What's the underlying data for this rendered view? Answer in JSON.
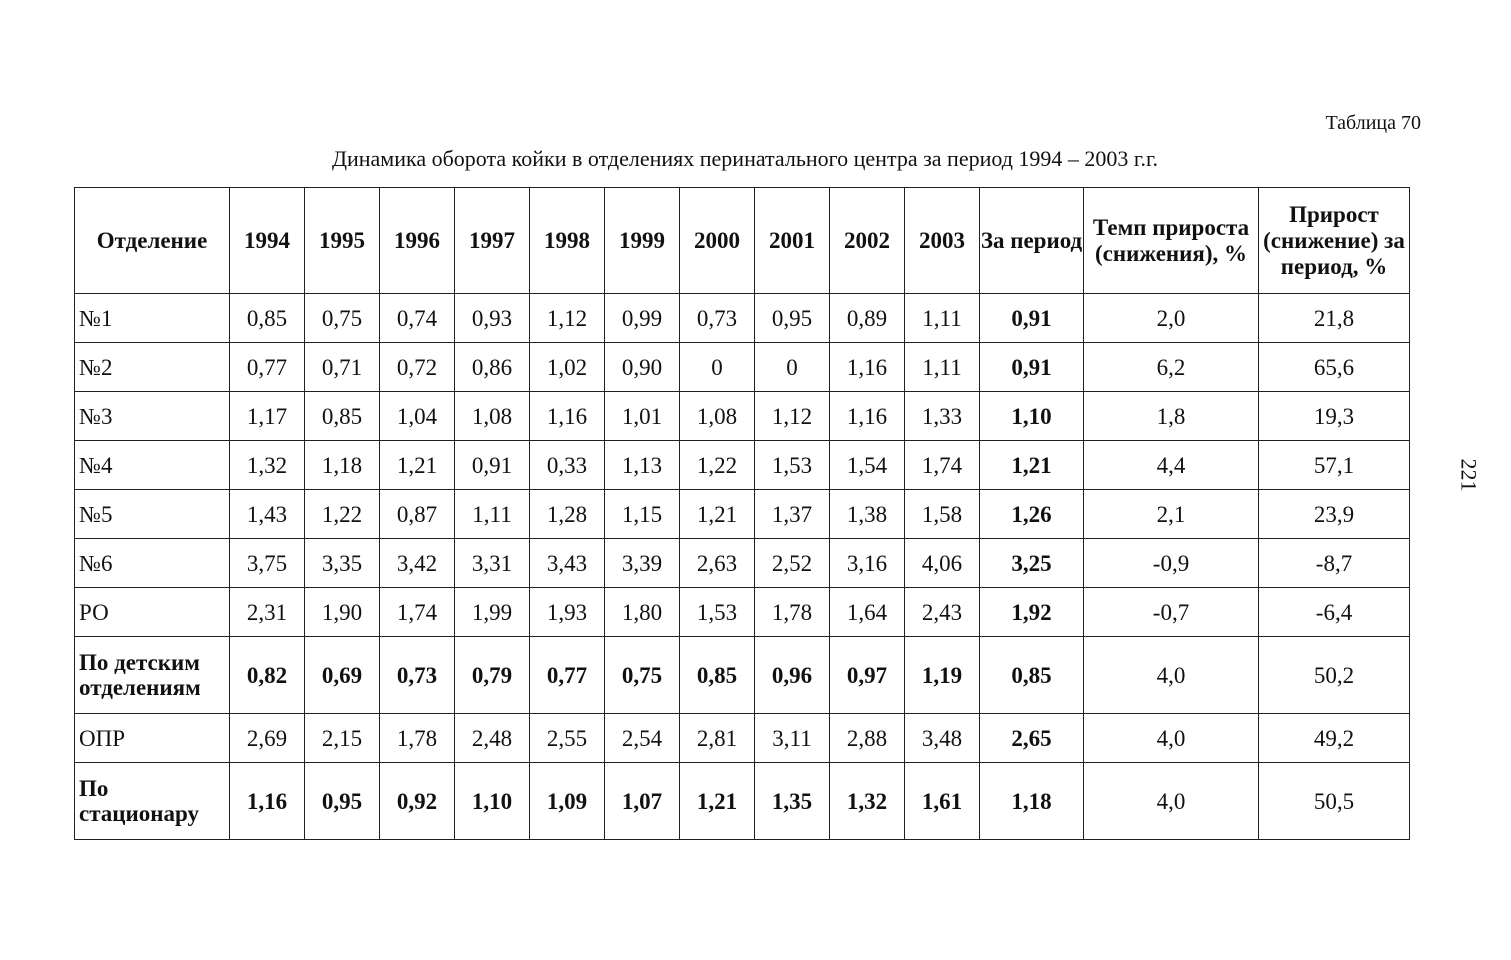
{
  "header": {
    "table_number": "Таблица 70",
    "caption": "Динамика оборота койки в отделениях перинатального центра за период 1994 – 2003 г.г.",
    "page_number": "221"
  },
  "table": {
    "columns": [
      "Отделение",
      "1994",
      "1995",
      "1996",
      "1997",
      "1998",
      "1999",
      "2000",
      "2001",
      "2002",
      "2003",
      "За период",
      "Темп прироста (снижения), %",
      "Прирост (снижение) за период, %"
    ],
    "rows": [
      {
        "label": "№1",
        "values": [
          "0,85",
          "0,75",
          "0,74",
          "0,93",
          "1,12",
          "0,99",
          "0,73",
          "0,95",
          "0,89",
          "1,11"
        ],
        "period": "0,91",
        "rate": "2,0",
        "growth": "21,8"
      },
      {
        "label": "№2",
        "values": [
          "0,77",
          "0,71",
          "0,72",
          "0,86",
          "1,02",
          "0,90",
          "0",
          "0",
          "1,16",
          "1,11"
        ],
        "period": "0,91",
        "rate": "6,2",
        "growth": "65,6"
      },
      {
        "label": "№3",
        "values": [
          "1,17",
          "0,85",
          "1,04",
          "1,08",
          "1,16",
          "1,01",
          "1,08",
          "1,12",
          "1,16",
          "1,33"
        ],
        "period": "1,10",
        "rate": "1,8",
        "growth": "19,3"
      },
      {
        "label": "№4",
        "values": [
          "1,32",
          "1,18",
          "1,21",
          "0,91",
          "0,33",
          "1,13",
          "1,22",
          "1,53",
          "1,54",
          "1,74"
        ],
        "period": "1,21",
        "rate": "4,4",
        "growth": "57,1"
      },
      {
        "label": "№5",
        "values": [
          "1,43",
          "1,22",
          "0,87",
          "1,11",
          "1,28",
          "1,15",
          "1,21",
          "1,37",
          "1,38",
          "1,58"
        ],
        "period": "1,26",
        "rate": "2,1",
        "growth": "23,9"
      },
      {
        "label": "№6",
        "values": [
          "3,75",
          "3,35",
          "3,42",
          "3,31",
          "3,43",
          "3,39",
          "2,63",
          "2,52",
          "3,16",
          "4,06"
        ],
        "period": "3,25",
        "rate": "-0,9",
        "growth": "-8,7"
      },
      {
        "label": "РО",
        "values": [
          "2,31",
          "1,90",
          "1,74",
          "1,99",
          "1,93",
          "1,80",
          "1,53",
          "1,78",
          "1,64",
          "2,43"
        ],
        "period": "1,92",
        "rate": "-0,7",
        "growth": "-6,4"
      },
      {
        "label": "По детским отделениям",
        "values": [
          "0,82",
          "0,69",
          "0,73",
          "0,79",
          "0,77",
          "0,75",
          "0,85",
          "0,96",
          "0,97",
          "1,19"
        ],
        "period": "0,85",
        "rate": "4,0",
        "growth": "50,2"
      },
      {
        "label": "ОПР",
        "values": [
          "2,69",
          "2,15",
          "1,78",
          "2,48",
          "2,55",
          "2,54",
          "2,81",
          "3,11",
          "2,88",
          "3,48"
        ],
        "period": "2,65",
        "rate": "4,0",
        "growth": "49,2"
      },
      {
        "label": "По стационару",
        "values": [
          "1,16",
          "0,95",
          "0,92",
          "1,10",
          "1,09",
          "1,07",
          "1,21",
          "1,35",
          "1,32",
          "1,61"
        ],
        "period": "1,18",
        "rate": "4,0",
        "growth": "50,5"
      }
    ]
  }
}
